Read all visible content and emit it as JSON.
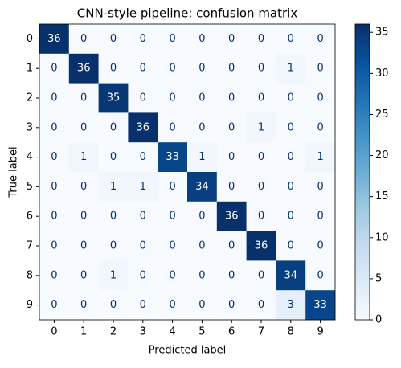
{
  "chart_data": {
    "type": "heatmap",
    "title": "CNN-style pipeline: confusion matrix",
    "x_label": "Predicted label",
    "y_label": "True label",
    "x": [
      "0",
      "1",
      "2",
      "3",
      "4",
      "5",
      "6",
      "7",
      "8",
      "9"
    ],
    "y": [
      "0",
      "1",
      "2",
      "3",
      "4",
      "5",
      "6",
      "7",
      "8",
      "9"
    ],
    "z": [
      [
        36,
        0,
        0,
        0,
        0,
        0,
        0,
        0,
        0,
        0
      ],
      [
        0,
        36,
        0,
        0,
        0,
        0,
        0,
        0,
        1,
        0
      ],
      [
        0,
        0,
        35,
        0,
        0,
        0,
        0,
        0,
        0,
        0
      ],
      [
        0,
        0,
        0,
        36,
        0,
        0,
        0,
        1,
        0,
        0
      ],
      [
        0,
        1,
        0,
        0,
        33,
        1,
        0,
        0,
        0,
        1
      ],
      [
        0,
        0,
        1,
        1,
        0,
        34,
        0,
        0,
        0,
        0
      ],
      [
        0,
        0,
        0,
        0,
        0,
        0,
        36,
        0,
        0,
        0
      ],
      [
        0,
        0,
        0,
        0,
        0,
        0,
        0,
        36,
        0,
        0
      ],
      [
        0,
        0,
        1,
        0,
        0,
        0,
        0,
        0,
        34,
        0
      ],
      [
        0,
        0,
        0,
        0,
        0,
        0,
        0,
        0,
        3,
        33
      ]
    ],
    "clim": [
      0,
      36
    ],
    "cticks": [
      0,
      5,
      10,
      15,
      20,
      25,
      30,
      35
    ],
    "colormap": [
      "#f7fbff",
      "#deebf7",
      "#c6dbef",
      "#9ecae1",
      "#6baed6",
      "#4292c6",
      "#2171b5",
      "#08519c",
      "#08306b"
    ]
  }
}
